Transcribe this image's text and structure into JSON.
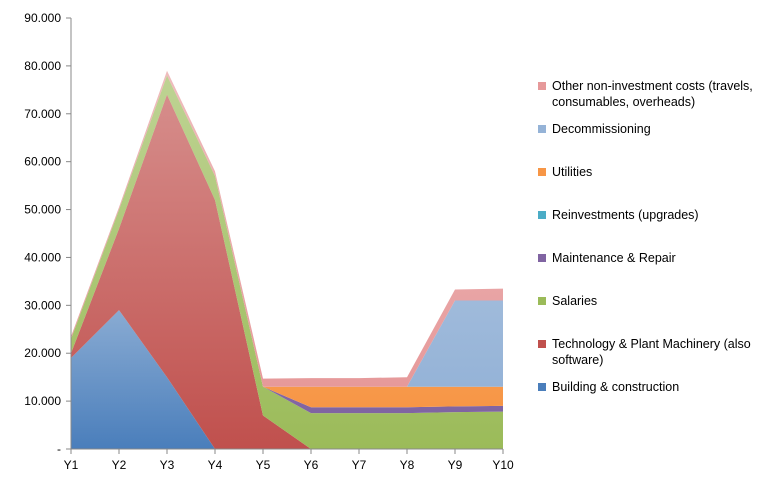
{
  "chart_data": {
    "type": "area",
    "stacked": true,
    "categories": [
      "Y1",
      "Y2",
      "Y3",
      "Y4",
      "Y5",
      "Y6",
      "Y7",
      "Y8",
      "Y9",
      "Y10"
    ],
    "ylim": [
      0,
      90000
    ],
    "yticks": [
      0,
      10000,
      20000,
      30000,
      40000,
      50000,
      60000,
      70000,
      80000,
      90000
    ],
    "ytick_labels": [
      "-",
      "10.000",
      "20.000",
      "30.000",
      "40.000",
      "50.000",
      "60.000",
      "70.000",
      "80.000",
      "90.000"
    ],
    "grid": false,
    "legend_position": "right",
    "series": [
      {
        "name": "Building & construction",
        "color": "#4a7ebb",
        "values": [
          19000,
          29000,
          15000,
          0,
          0,
          0,
          0,
          0,
          0,
          0
        ]
      },
      {
        "name": "Technology & Plant Machinery (also software)",
        "color": "#c0504d",
        "values": [
          1000,
          17000,
          59000,
          52000,
          7000,
          0,
          0,
          0,
          0,
          0
        ]
      },
      {
        "name": "Salaries",
        "color": "#9bbb59",
        "values": [
          3000,
          4000,
          4000,
          5000,
          6000,
          7500,
          7500,
          7500,
          7700,
          7800
        ]
      },
      {
        "name": "Maintenance & Repair",
        "color": "#8064a2",
        "values": [
          0,
          0,
          0,
          0,
          0,
          1200,
          1200,
          1200,
          1200,
          1200
        ]
      },
      {
        "name": "Reinvestments (upgrades)",
        "color": "#4bacc6",
        "values": [
          0,
          0,
          0,
          0,
          0,
          0,
          0,
          0,
          0,
          0
        ]
      },
      {
        "name": "Utilities",
        "color": "#f79646",
        "values": [
          0,
          0,
          0,
          0,
          0,
          4300,
          4300,
          4300,
          4100,
          4000
        ]
      },
      {
        "name": "Decommissioning",
        "color": "#95b3d7",
        "values": [
          0,
          0,
          0,
          0,
          0,
          0,
          0,
          0,
          18000,
          18000
        ]
      },
      {
        "name": "Other non-investment costs (travels, consumables, overheads)",
        "color": "#e6999a",
        "values": [
          500,
          500,
          1000,
          1000,
          1700,
          1800,
          1800,
          2000,
          2300,
          2500
        ]
      }
    ]
  }
}
